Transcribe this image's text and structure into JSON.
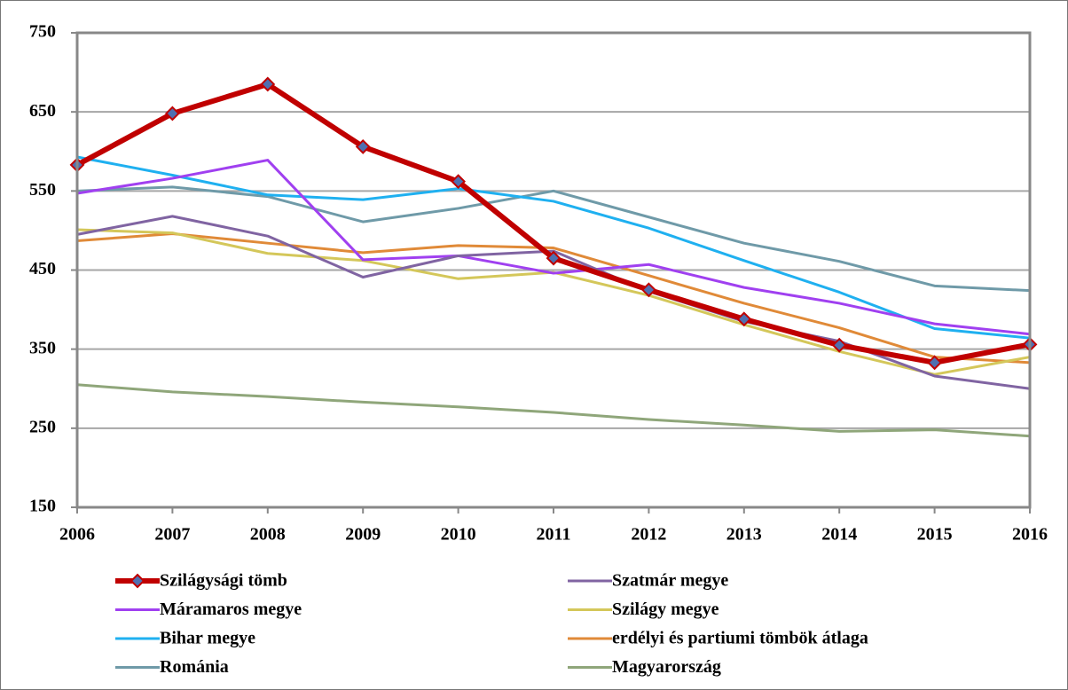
{
  "chart_data": {
    "type": "line",
    "x": [
      2006,
      2007,
      2008,
      2009,
      2010,
      2011,
      2012,
      2013,
      2014,
      2015,
      2016
    ],
    "xlim": [
      2006,
      2016
    ],
    "xticks": [
      2006,
      2007,
      2008,
      2009,
      2010,
      2011,
      2012,
      2013,
      2014,
      2015,
      2016
    ],
    "ylim": [
      150,
      750
    ],
    "yticks": [
      150,
      250,
      350,
      450,
      550,
      650,
      750
    ],
    "grid": true,
    "legend": "bottom",
    "series": [
      {
        "name": "Szilágysági tömb",
        "color": "#c00000",
        "marker": "diamond",
        "values": [
          583,
          648,
          685,
          606,
          562,
          465,
          425,
          388,
          355,
          333,
          356
        ]
      },
      {
        "name": "Szatmár megye",
        "color": "#8064a2",
        "values": [
          495,
          518,
          493,
          441,
          468,
          474,
          423,
          385,
          360,
          316,
          300
        ]
      },
      {
        "name": "Máramaros megye",
        "color": "#a040f0",
        "values": [
          547,
          566,
          589,
          463,
          468,
          446,
          457,
          428,
          408,
          382,
          369
        ]
      },
      {
        "name": "Szilágy megye",
        "color": "#d4c75a",
        "values": [
          501,
          497,
          471,
          462,
          439,
          447,
          418,
          381,
          347,
          318,
          340
        ]
      },
      {
        "name": "Bihar megye",
        "color": "#1fb0f0",
        "values": [
          593,
          570,
          545,
          539,
          553,
          537,
          503,
          462,
          422,
          376,
          364
        ]
      },
      {
        "name": "erdélyi és partiumi tömbök átlaga",
        "color": "#e08a38",
        "values": [
          487,
          496,
          484,
          472,
          481,
          478,
          443,
          408,
          377,
          340,
          333
        ]
      },
      {
        "name": "Románia",
        "color": "#6f9aa8",
        "values": [
          550,
          555,
          543,
          511,
          528,
          550,
          517,
          484,
          461,
          430,
          424
        ]
      },
      {
        "name": "Magyarország",
        "color": "#8fa67a",
        "values": [
          305,
          296,
          290,
          283,
          277,
          270,
          261,
          254,
          246,
          248,
          240
        ]
      }
    ]
  }
}
